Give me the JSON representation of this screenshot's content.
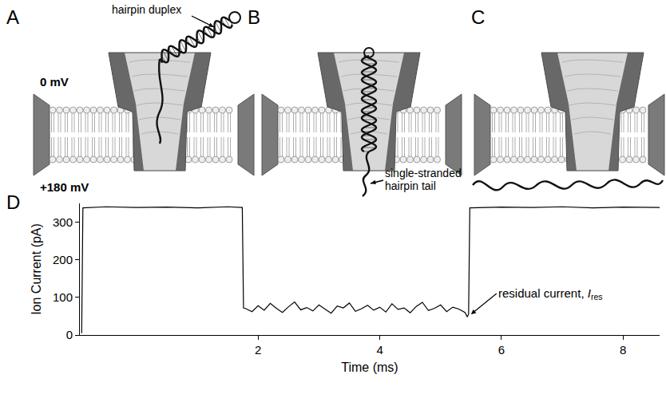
{
  "panels": {
    "A": {
      "letter": "A",
      "voltage_top": "0 mV",
      "voltage_bottom": "+180 mV",
      "label": "hairpin duplex"
    },
    "B": {
      "letter": "B",
      "label": "single-stranded hairpin tail"
    },
    "C": {
      "letter": "C"
    },
    "D": {
      "letter": "D"
    }
  },
  "chart_data": {
    "type": "line",
    "x_label": "Time (ms)",
    "y_label": "Ion Current (pA)",
    "color": "#000000",
    "x": [
      -0.9,
      -0.88,
      -0.5,
      0,
      0.5,
      1,
      1.5,
      1.74,
      1.76,
      1.8,
      1.9,
      2.0,
      2.1,
      2.2,
      2.3,
      2.4,
      2.5,
      2.6,
      2.7,
      2.8,
      2.9,
      3.0,
      3.1,
      3.2,
      3.3,
      3.4,
      3.5,
      3.6,
      3.7,
      3.8,
      3.9,
      4.0,
      4.1,
      4.2,
      4.3,
      4.4,
      4.5,
      4.6,
      4.7,
      4.8,
      4.9,
      5.0,
      5.1,
      5.2,
      5.3,
      5.4,
      5.44,
      5.46,
      5.48,
      6,
      6.5,
      7,
      7.5,
      8,
      8.6
    ],
    "values": [
      5,
      338,
      341,
      339,
      340,
      338,
      341,
      339,
      72,
      70,
      62,
      78,
      66,
      84,
      71,
      60,
      75,
      88,
      67,
      73,
      64,
      80,
      69,
      58,
      77,
      72,
      85,
      63,
      70,
      79,
      66,
      74,
      61,
      83,
      68,
      72,
      59,
      76,
      87,
      65,
      71,
      80,
      62,
      74,
      69,
      60,
      48,
      56,
      338,
      340,
      339,
      341,
      338,
      340,
      339
    ],
    "xlim": [
      -0.93,
      8.6
    ],
    "xticks": [
      2,
      4,
      6,
      8
    ],
    "ylim": [
      0,
      350
    ],
    "yticks": [
      0,
      100,
      200,
      300
    ],
    "grid": false,
    "annotation": {
      "text": "residual current,",
      "symbol": "I",
      "subscript": "res",
      "x": 5.5,
      "y": 55
    }
  }
}
